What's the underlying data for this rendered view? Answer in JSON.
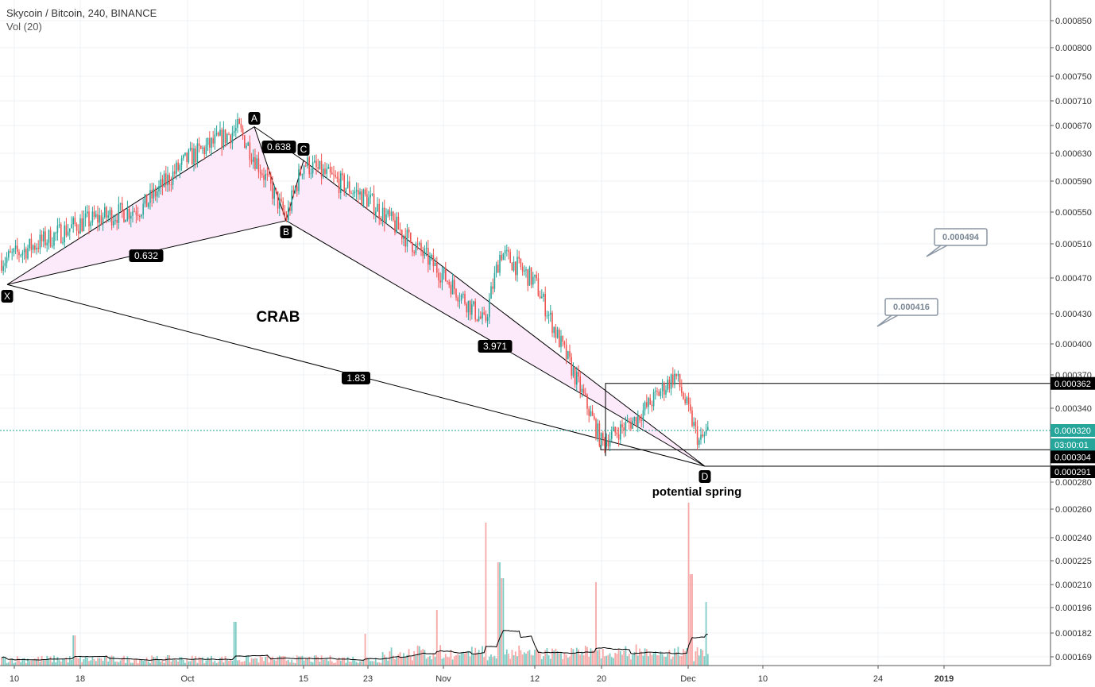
{
  "header": {
    "symbol_line": "Skycoin / Bitcoin, 240, BINANCE",
    "indicator_line": "Vol (20)"
  },
  "chart_data": {
    "type": "candlestick",
    "title": "Skycoin / Bitcoin, 240, BINANCE",
    "indicator": "Vol (20)",
    "scale": "log",
    "ylim": [
      0.00016,
      0.00088
    ],
    "grid": true,
    "y_ticks": [
      "0.000850",
      "0.000800",
      "0.000750",
      "0.000710",
      "0.000670",
      "0.000630",
      "0.000590",
      "0.000550",
      "0.000510",
      "0.000470",
      "0.000430",
      "0.000400",
      "0.000370",
      "0.000340",
      "0.000280",
      "0.000260",
      "0.000240",
      "0.000225",
      "0.000210",
      "0.000196",
      "0.000182",
      "0.000169"
    ],
    "x_ticks": [
      "10",
      "18",
      "Oct",
      "15",
      "23",
      "Nov",
      "12",
      "20",
      "Dec",
      "10",
      "24",
      "2019"
    ],
    "price_series": [
      [
        "10",
        0.00049
      ],
      [
        "18",
        0.000535
      ],
      [
        "Oct",
        0.000555
      ],
      [
        "Oct",
        0.00062
      ],
      [
        "Oct",
        0.000665
      ],
      [
        "15",
        0.00054
      ],
      [
        "15",
        0.000615
      ],
      [
        "23",
        0.000565
      ],
      [
        "Nov",
        0.00049
      ],
      [
        "Nov",
        0.00042
      ],
      [
        "Nov",
        0.0005
      ],
      [
        "12",
        0.000465
      ],
      [
        "12",
        0.00041
      ],
      [
        "20",
        0.00031
      ],
      [
        "20",
        0.00033
      ],
      [
        "Dec",
        0.00037
      ],
      [
        "Dec",
        0.00031
      ],
      [
        "Dec",
        0.00032
      ]
    ],
    "last_price": "0.000320",
    "countdown": "03:00:01",
    "price_labels": [
      {
        "value": "0.000362",
        "style": "black"
      },
      {
        "value": "0.000304",
        "style": "black"
      },
      {
        "value": "0.000291",
        "style": "black"
      }
    ],
    "pattern": {
      "name": "CRAB",
      "points": [
        {
          "label": "X",
          "price": 0.000462
        },
        {
          "label": "A",
          "price": 0.000668
        },
        {
          "label": "B",
          "price": 0.000538
        },
        {
          "label": "C",
          "price": 0.000618
        },
        {
          "label": "D",
          "price": 0.000291
        }
      ],
      "ratios": [
        "0.632",
        "0.638",
        "3.971",
        "1.83"
      ]
    },
    "annotations": [
      "potential spring"
    ],
    "callouts": [
      "0.000494",
      "0.000416"
    ]
  },
  "colors": {
    "up": "#26a69a",
    "down": "#ef5350",
    "up_vol": "#7fccc4",
    "down_vol": "#f7a9a7",
    "pattern_fill": "#fce8fa",
    "last_price": "#26a69a",
    "grid": "#eef2f5"
  }
}
